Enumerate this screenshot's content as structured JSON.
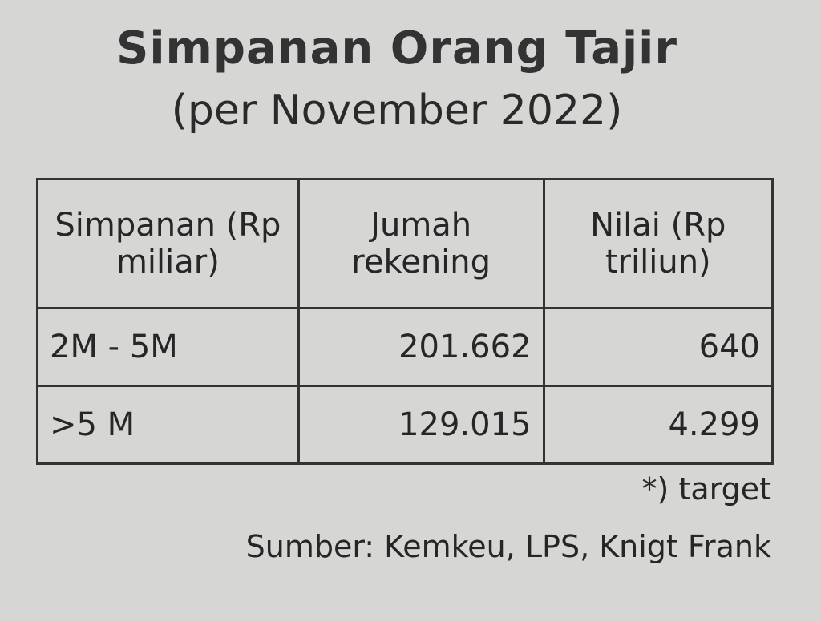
{
  "header": {
    "title": "Simpanan Orang Tajir",
    "subtitle": "(per November 2022)"
  },
  "table": {
    "columns": [
      "Simpanan (Rp miliar)",
      "Jumah rekening",
      "Nilai (Rp triliun)"
    ],
    "rows": [
      [
        "2M - 5M",
        "201.662",
        "640"
      ],
      [
        ">5 M",
        "129.015",
        "4.299"
      ]
    ]
  },
  "footer": {
    "note": "*) target",
    "source": "Sumber: Kemkeu, LPS, Knigt Frank"
  }
}
